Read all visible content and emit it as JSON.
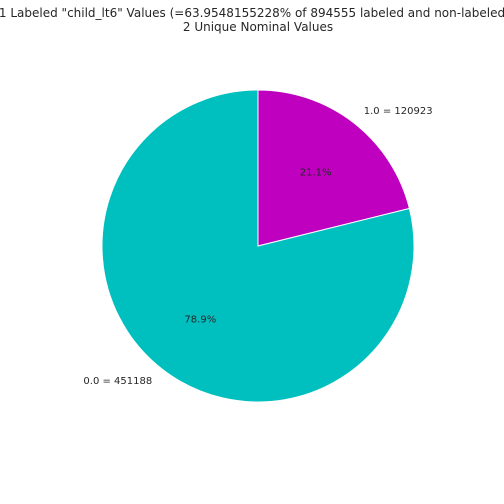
{
  "chart_data": {
    "type": "pie",
    "title": "1 Labeled \"child_lt6\" Values (=63.9548155228% of 894555 labeled and non-labeled",
    "subtitle": "2 Unique Nominal Values",
    "slices": [
      {
        "label": "1.0 = 120923",
        "value": 120923,
        "percent_label": "21.1%",
        "color": "#bf00bf"
      },
      {
        "label": "0.0 = 451188",
        "value": 451188,
        "percent_label": "78.9%",
        "color": "#00bfbf"
      }
    ],
    "start_angle_deg": 90,
    "direction": "clockwise"
  }
}
